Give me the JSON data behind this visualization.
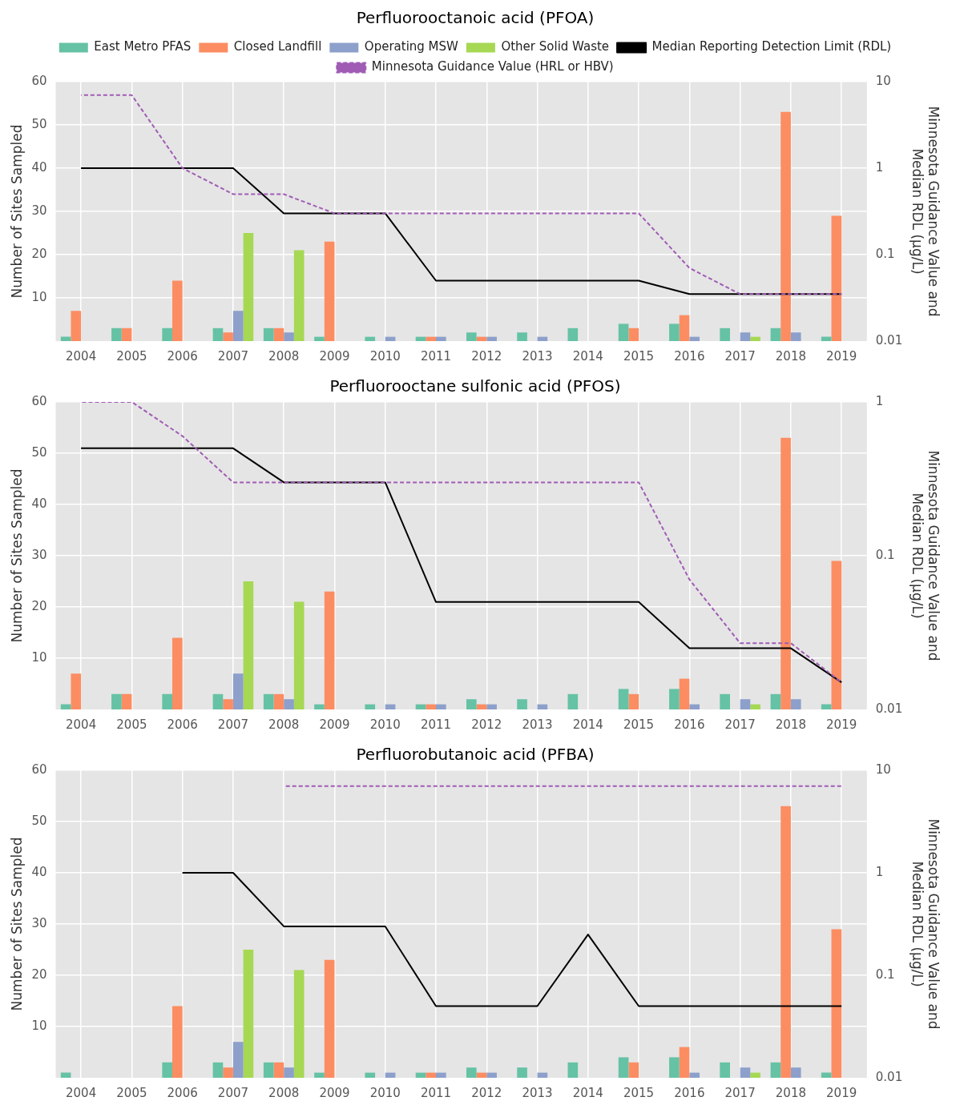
{
  "chart_data": [
    {
      "type": "bar",
      "title": "Perfluorooctanoic acid (PFOA)",
      "ylabel": "Number of Sites Sampled",
      "y2label": "Minnesota Guidance Value and\nMedian RDL (µg/L)",
      "categories": [
        "2004",
        "2005",
        "2006",
        "2007",
        "2008",
        "2009",
        "2010",
        "2011",
        "2012",
        "2013",
        "2014",
        "2015",
        "2016",
        "2017",
        "2018",
        "2019"
      ],
      "series": [
        {
          "name": "East Metro PFAS",
          "color": "#66c2a5",
          "values": [
            1,
            3,
            3,
            3,
            3,
            1,
            1,
            1,
            2,
            2,
            3,
            4,
            4,
            3,
            3,
            1
          ]
        },
        {
          "name": "Closed Landfill",
          "color": "#fc8d62",
          "values": [
            7,
            3,
            14,
            2,
            3,
            23,
            null,
            1,
            1,
            null,
            null,
            3,
            6,
            null,
            53,
            29
          ]
        },
        {
          "name": "Operating MSW",
          "color": "#8da0cb",
          "values": [
            null,
            null,
            null,
            7,
            2,
            null,
            1,
            1,
            1,
            1,
            null,
            null,
            1,
            2,
            2,
            null
          ]
        },
        {
          "name": "Other Solid Waste",
          "color": "#a6d854",
          "values": [
            null,
            null,
            null,
            25,
            21,
            null,
            null,
            null,
            null,
            null,
            null,
            null,
            null,
            1,
            null,
            null
          ]
        },
        {
          "name": "Median Reporting Detection Limit (RDL)",
          "type": "line",
          "axis": "y2",
          "color": "#000000",
          "line_style": "solid",
          "values": [
            1,
            1,
            1,
            1,
            0.3,
            0.3,
            0.3,
            0.05,
            0.05,
            0.05,
            0.05,
            0.05,
            0.035,
            0.035,
            0.035,
            0.035
          ]
        },
        {
          "name": "Minnesota Guidance Value (HRL or HBV)",
          "type": "line",
          "axis": "y2",
          "color": "#a05cb5",
          "line_style": "dashed",
          "values": [
            7,
            7,
            1,
            0.5,
            0.5,
            0.3,
            0.3,
            0.3,
            0.3,
            0.3,
            0.3,
            0.3,
            0.07,
            0.035,
            0.035,
            0.035
          ]
        }
      ],
      "ylim": [
        0,
        60
      ],
      "yticks": [
        10,
        20,
        30,
        40,
        50,
        60
      ],
      "y2lim": [
        0.01,
        10
      ],
      "y2ticks": [
        0.01,
        0.1,
        1,
        10
      ],
      "log": "y2",
      "grid": true,
      "legend": "top",
      "marker": "none"
    },
    {
      "type": "bar",
      "title": "Perfluorooctane sulfonic acid (PFOS)",
      "ylabel": "Number of Sites Sampled",
      "y2label": "Minnesota Guidance Value and\nMedian RDL (µg/L)",
      "categories": [
        "2004",
        "2005",
        "2006",
        "2007",
        "2008",
        "2009",
        "2010",
        "2011",
        "2012",
        "2013",
        "2014",
        "2015",
        "2016",
        "2017",
        "2018",
        "2019"
      ],
      "series": [
        {
          "color": "#66c2a5",
          "values": [
            1,
            3,
            3,
            3,
            3,
            1,
            1,
            1,
            2,
            2,
            3,
            4,
            4,
            3,
            3,
            1
          ]
        },
        {
          "color": "#fc8d62",
          "values": [
            7,
            3,
            14,
            2,
            3,
            23,
            null,
            1,
            1,
            null,
            null,
            3,
            6,
            null,
            53,
            29
          ]
        },
        {
          "color": "#8da0cb",
          "values": [
            null,
            null,
            null,
            7,
            2,
            null,
            1,
            1,
            1,
            1,
            null,
            null,
            1,
            2,
            2,
            null
          ]
        },
        {
          "color": "#a6d854",
          "values": [
            null,
            null,
            null,
            25,
            21,
            null,
            null,
            null,
            null,
            null,
            null,
            null,
            null,
            1,
            null,
            null
          ]
        },
        {
          "type": "line",
          "axis": "y2",
          "color": "#000000",
          "line_style": "solid",
          "values": [
            0.5,
            0.5,
            0.5,
            0.5,
            0.3,
            0.3,
            0.3,
            0.05,
            0.05,
            0.05,
            0.05,
            0.05,
            0.025,
            0.025,
            0.025,
            0.015
          ]
        },
        {
          "type": "line",
          "axis": "y2",
          "color": "#a05cb5",
          "line_style": "dashed",
          "values": [
            1,
            1,
            0.6,
            0.3,
            0.3,
            0.3,
            0.3,
            0.3,
            0.3,
            0.3,
            0.3,
            0.3,
            0.07,
            0.027,
            0.027,
            0.015
          ]
        }
      ],
      "ylim": [
        0,
        60
      ],
      "yticks": [
        10,
        20,
        30,
        40,
        50,
        60
      ],
      "y2lim": [
        0.01,
        1
      ],
      "y2ticks": [
        0.01,
        0.1,
        1
      ],
      "log": "y2",
      "grid": true,
      "marker": "none"
    },
    {
      "type": "bar",
      "title": "Perfluorobutanoic acid (PFBA)",
      "ylabel": "Number of Sites Sampled",
      "y2label": "Minnesota Guidance Value and\nMedian RDL (µg/L)",
      "categories": [
        "2004",
        "2005",
        "2006",
        "2007",
        "2008",
        "2009",
        "2010",
        "2011",
        "2012",
        "2013",
        "2014",
        "2015",
        "2016",
        "2017",
        "2018",
        "2019"
      ],
      "series": [
        {
          "color": "#66c2a5",
          "values": [
            1,
            null,
            3,
            3,
            3,
            1,
            1,
            1,
            2,
            2,
            3,
            4,
            4,
            3,
            3,
            1
          ]
        },
        {
          "color": "#fc8d62",
          "values": [
            null,
            null,
            14,
            2,
            3,
            23,
            null,
            1,
            1,
            null,
            null,
            3,
            6,
            null,
            53,
            29
          ]
        },
        {
          "color": "#8da0cb",
          "values": [
            null,
            null,
            null,
            7,
            2,
            null,
            1,
            1,
            1,
            1,
            null,
            null,
            1,
            2,
            2,
            null
          ]
        },
        {
          "color": "#a6d854",
          "values": [
            null,
            null,
            null,
            25,
            21,
            null,
            null,
            null,
            null,
            null,
            null,
            null,
            null,
            1,
            null,
            null
          ]
        },
        {
          "type": "line",
          "axis": "y2",
          "color": "#000000",
          "line_style": "solid",
          "values": [
            null,
            null,
            1,
            1,
            0.3,
            0.3,
            0.3,
            0.05,
            0.05,
            0.05,
            0.25,
            0.05,
            0.05,
            0.05,
            0.05,
            0.05
          ]
        },
        {
          "type": "line",
          "axis": "y2",
          "color": "#a05cb5",
          "line_style": "dashed",
          "values": [
            null,
            null,
            null,
            null,
            7,
            7,
            7,
            7,
            7,
            7,
            7,
            7,
            7,
            7,
            7,
            7
          ]
        }
      ],
      "ylim": [
        0,
        60
      ],
      "yticks": [
        10,
        20,
        30,
        40,
        50,
        60
      ],
      "y2lim": [
        0.01,
        10
      ],
      "y2ticks": [
        0.01,
        0.1,
        1,
        10
      ],
      "log": "y2",
      "grid": true,
      "marker": "none"
    }
  ]
}
